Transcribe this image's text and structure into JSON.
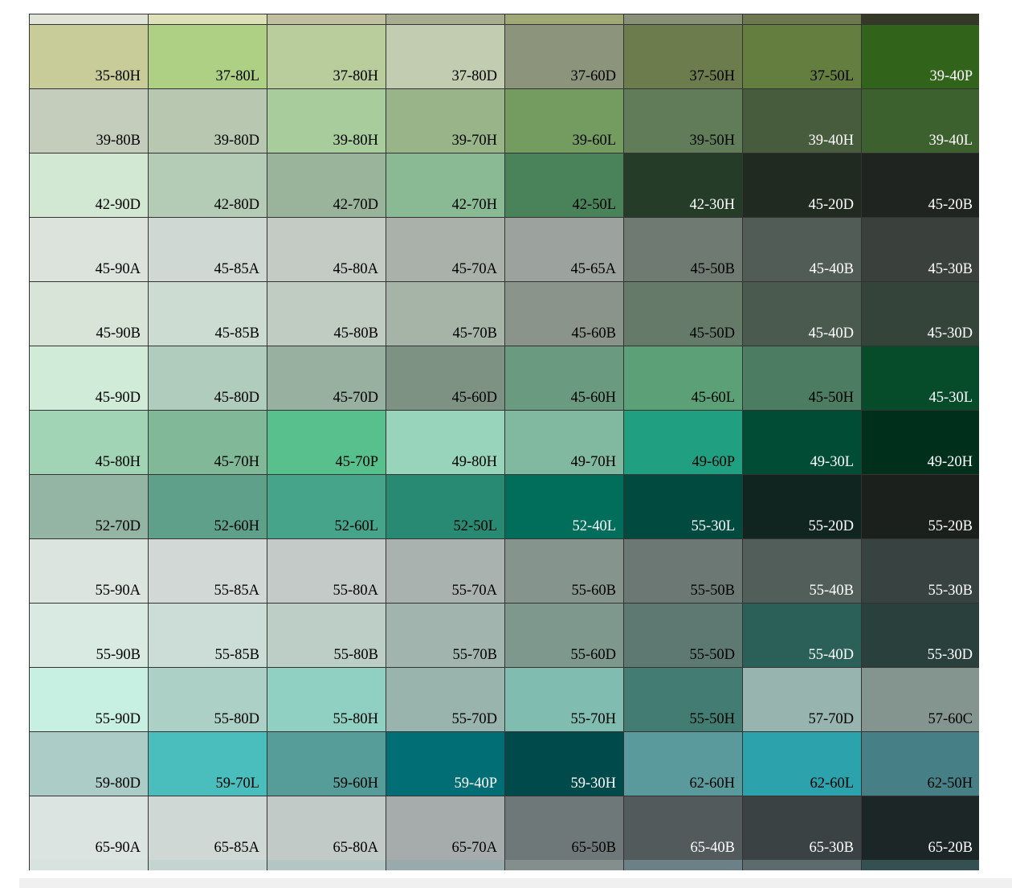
{
  "top_strip": [
    "#e0e4d8",
    "#dde0b8",
    "#c0c0a0",
    "#a8ac90",
    "#a0a878",
    "#889078",
    "#6e7850",
    "#363828"
  ],
  "bottom_strip": [
    "#d8e2de",
    "#c4d4d0",
    "#b4c6c4",
    "#98aaac",
    "#848e8c",
    "#6c8088",
    "#5c6c6c",
    "#345050"
  ],
  "swatches": [
    {
      "code": "35-80H",
      "bg": "#c8cc98",
      "fg": "#000000"
    },
    {
      "code": "37-80L",
      "bg": "#aed084",
      "fg": "#000000"
    },
    {
      "code": "37-80H",
      "bg": "#b8cc9c",
      "fg": "#000000"
    },
    {
      "code": "37-80D",
      "bg": "#c2ccb0",
      "fg": "#000000"
    },
    {
      "code": "37-60D",
      "bg": "#8c947c",
      "fg": "#000000"
    },
    {
      "code": "37-50H",
      "bg": "#6c7c4c",
      "fg": "#000000"
    },
    {
      "code": "37-50L",
      "bg": "#647e40",
      "fg": "#000000"
    },
    {
      "code": "39-40P",
      "bg": "#31641a",
      "fg": "#ffffff"
    },
    {
      "code": "39-80B",
      "bg": "#c4ccbc",
      "fg": "#000000"
    },
    {
      "code": "39-80D",
      "bg": "#b8c8b0",
      "fg": "#000000"
    },
    {
      "code": "39-80H",
      "bg": "#a8cc9c",
      "fg": "#000000"
    },
    {
      "code": "39-70H",
      "bg": "#98b488",
      "fg": "#000000"
    },
    {
      "code": "39-60L",
      "bg": "#749c60",
      "fg": "#000000"
    },
    {
      "code": "39-50H",
      "bg": "#607c58",
      "fg": "#000000"
    },
    {
      "code": "39-40H",
      "bg": "#465c3c",
      "fg": "#ffffff"
    },
    {
      "code": "39-40L",
      "bg": "#3c602e",
      "fg": "#ffffff"
    },
    {
      "code": "42-90D",
      "bg": "#d2e8d2",
      "fg": "#000000"
    },
    {
      "code": "42-80D",
      "bg": "#b4ccb6",
      "fg": "#000000"
    },
    {
      "code": "42-70D",
      "bg": "#9ab49c",
      "fg": "#000000"
    },
    {
      "code": "42-70H",
      "bg": "#8aba94",
      "fg": "#000000"
    },
    {
      "code": "42-50L",
      "bg": "#4a825a",
      "fg": "#000000"
    },
    {
      "code": "42-30H",
      "bg": "#243c28",
      "fg": "#ffffff"
    },
    {
      "code": "45-20D",
      "bg": "#202a20",
      "fg": "#ffffff"
    },
    {
      "code": "45-20B",
      "bg": "#202420",
      "fg": "#ffffff"
    },
    {
      "code": "45-90A",
      "bg": "#dce2dc",
      "fg": "#000000"
    },
    {
      "code": "45-85A",
      "bg": "#cfd8d2",
      "fg": "#000000"
    },
    {
      "code": "45-80A",
      "bg": "#c4cac4",
      "fg": "#000000"
    },
    {
      "code": "45-70A",
      "bg": "#aab0aa",
      "fg": "#000000"
    },
    {
      "code": "45-65A",
      "bg": "#9ca29e",
      "fg": "#000000"
    },
    {
      "code": "45-50B",
      "bg": "#6e7a72",
      "fg": "#000000"
    },
    {
      "code": "45-40B",
      "bg": "#525c56",
      "fg": "#ffffff"
    },
    {
      "code": "45-30B",
      "bg": "#3a403c",
      "fg": "#ffffff"
    },
    {
      "code": "45-90B",
      "bg": "#d8e4d8",
      "fg": "#000000"
    },
    {
      "code": "45-85B",
      "bg": "#ccdcd2",
      "fg": "#000000"
    },
    {
      "code": "45-80B",
      "bg": "#c0ccc2",
      "fg": "#000000"
    },
    {
      "code": "45-70B",
      "bg": "#a6b4a8",
      "fg": "#000000"
    },
    {
      "code": "45-60B",
      "bg": "#8a948a",
      "fg": "#000000"
    },
    {
      "code": "45-50D",
      "bg": "#667a6a",
      "fg": "#000000"
    },
    {
      "code": "45-40D",
      "bg": "#4a5a4e",
      "fg": "#ffffff"
    },
    {
      "code": "45-30D",
      "bg": "#34443a",
      "fg": "#ffffff"
    },
    {
      "code": "45-90D",
      "bg": "#d0ecd8",
      "fg": "#000000"
    },
    {
      "code": "45-80D",
      "bg": "#b0ccbc",
      "fg": "#000000"
    },
    {
      "code": "45-70D",
      "bg": "#98b0a0",
      "fg": "#000000"
    },
    {
      "code": "45-60D",
      "bg": "#7e9284",
      "fg": "#000000"
    },
    {
      "code": "45-60H",
      "bg": "#6a9a80",
      "fg": "#000000"
    },
    {
      "code": "45-60L",
      "bg": "#5ca078",
      "fg": "#000000"
    },
    {
      "code": "45-50H",
      "bg": "#4c7c62",
      "fg": "#000000"
    },
    {
      "code": "45-30L",
      "bg": "#064c2a",
      "fg": "#ffffff"
    },
    {
      "code": "45-80H",
      "bg": "#a0d4b4",
      "fg": "#000000"
    },
    {
      "code": "45-70H",
      "bg": "#80b898",
      "fg": "#000000"
    },
    {
      "code": "45-70P",
      "bg": "#58c08c",
      "fg": "#000000"
    },
    {
      "code": "49-80H",
      "bg": "#98d4bc",
      "fg": "#000000"
    },
    {
      "code": "49-70H",
      "bg": "#80b8a0",
      "fg": "#000000"
    },
    {
      "code": "49-60P",
      "bg": "#20a080",
      "fg": "#000000"
    },
    {
      "code": "49-30L",
      "bg": "#004c34",
      "fg": "#ffffff"
    },
    {
      "code": "49-20H",
      "bg": "#00301c",
      "fg": "#ffffff"
    },
    {
      "code": "52-70D",
      "bg": "#94b4a4",
      "fg": "#000000"
    },
    {
      "code": "52-60H",
      "bg": "#5ea08a",
      "fg": "#000000"
    },
    {
      "code": "52-60L",
      "bg": "#46a48a",
      "fg": "#000000"
    },
    {
      "code": "52-50L",
      "bg": "#288a72",
      "fg": "#000000"
    },
    {
      "code": "52-40L",
      "bg": "#006e5a",
      "fg": "#ffffff"
    },
    {
      "code": "55-30L",
      "bg": "#004a40",
      "fg": "#ffffff"
    },
    {
      "code": "55-20D",
      "bg": "#102420",
      "fg": "#ffffff"
    },
    {
      "code": "55-20B",
      "bg": "#1c201c",
      "fg": "#ffffff"
    },
    {
      "code": "55-90A",
      "bg": "#dce4e0",
      "fg": "#000000"
    },
    {
      "code": "55-85A",
      "bg": "#d2d8d6",
      "fg": "#000000"
    },
    {
      "code": "55-80A",
      "bg": "#c4cac8",
      "fg": "#000000"
    },
    {
      "code": "55-70A",
      "bg": "#aab2b0",
      "fg": "#000000"
    },
    {
      "code": "55-60B",
      "bg": "#86948e",
      "fg": "#000000"
    },
    {
      "code": "55-50B",
      "bg": "#6c7874",
      "fg": "#000000"
    },
    {
      "code": "55-40B",
      "bg": "#525e5a",
      "fg": "#ffffff"
    },
    {
      "code": "55-30B",
      "bg": "#384240",
      "fg": "#ffffff"
    },
    {
      "code": "55-90B",
      "bg": "#d8eae2",
      "fg": "#000000"
    },
    {
      "code": "55-85B",
      "bg": "#ccdcd6",
      "fg": "#000000"
    },
    {
      "code": "55-80B",
      "bg": "#bccec6",
      "fg": "#000000"
    },
    {
      "code": "55-70B",
      "bg": "#a2b4ae",
      "fg": "#000000"
    },
    {
      "code": "55-60D",
      "bg": "#7e988e",
      "fg": "#000000"
    },
    {
      "code": "55-50D",
      "bg": "#5e7872",
      "fg": "#000000"
    },
    {
      "code": "55-40D",
      "bg": "#2a6058",
      "fg": "#ffffff"
    },
    {
      "code": "55-30D",
      "bg": "#2a403c",
      "fg": "#ffffff"
    },
    {
      "code": "55-90D",
      "bg": "#c8f0e2",
      "fg": "#000000"
    },
    {
      "code": "55-80D",
      "bg": "#acd0c6",
      "fg": "#000000"
    },
    {
      "code": "55-80H",
      "bg": "#90d0c2",
      "fg": "#000000"
    },
    {
      "code": "55-70D",
      "bg": "#98b4ac",
      "fg": "#000000"
    },
    {
      "code": "55-70H",
      "bg": "#80bcb0",
      "fg": "#000000"
    },
    {
      "code": "55-50H",
      "bg": "#427c72",
      "fg": "#000000"
    },
    {
      "code": "57-70D",
      "bg": "#98b4ae",
      "fg": "#000000"
    },
    {
      "code": "57-60C",
      "bg": "#84948e",
      "fg": "#000000"
    },
    {
      "code": "59-80D",
      "bg": "#acccc8",
      "fg": "#000000"
    },
    {
      "code": "59-70L",
      "bg": "#4abebc",
      "fg": "#000000"
    },
    {
      "code": "59-60H",
      "bg": "#569c98",
      "fg": "#000000"
    },
    {
      "code": "59-40P",
      "bg": "#006e74",
      "fg": "#ffffff"
    },
    {
      "code": "59-30H",
      "bg": "#004a4c",
      "fg": "#ffffff"
    },
    {
      "code": "62-60H",
      "bg": "#5a9a9c",
      "fg": "#000000"
    },
    {
      "code": "62-60L",
      "bg": "#2ca2ac",
      "fg": "#000000"
    },
    {
      "code": "62-50H",
      "bg": "#468086",
      "fg": "#000000"
    },
    {
      "code": "65-90A",
      "bg": "#dce4e2",
      "fg": "#000000"
    },
    {
      "code": "65-85A",
      "bg": "#d0d8d6",
      "fg": "#000000"
    },
    {
      "code": "65-80A",
      "bg": "#c2cac8",
      "fg": "#000000"
    },
    {
      "code": "65-70A",
      "bg": "#a6acac",
      "fg": "#000000"
    },
    {
      "code": "65-50B",
      "bg": "#6e7878",
      "fg": "#000000"
    },
    {
      "code": "65-40B",
      "bg": "#525a5c",
      "fg": "#ffffff"
    },
    {
      "code": "65-30B",
      "bg": "#3a4244",
      "fg": "#ffffff"
    },
    {
      "code": "65-20B",
      "bg": "#1c2626",
      "fg": "#ffffff"
    }
  ]
}
